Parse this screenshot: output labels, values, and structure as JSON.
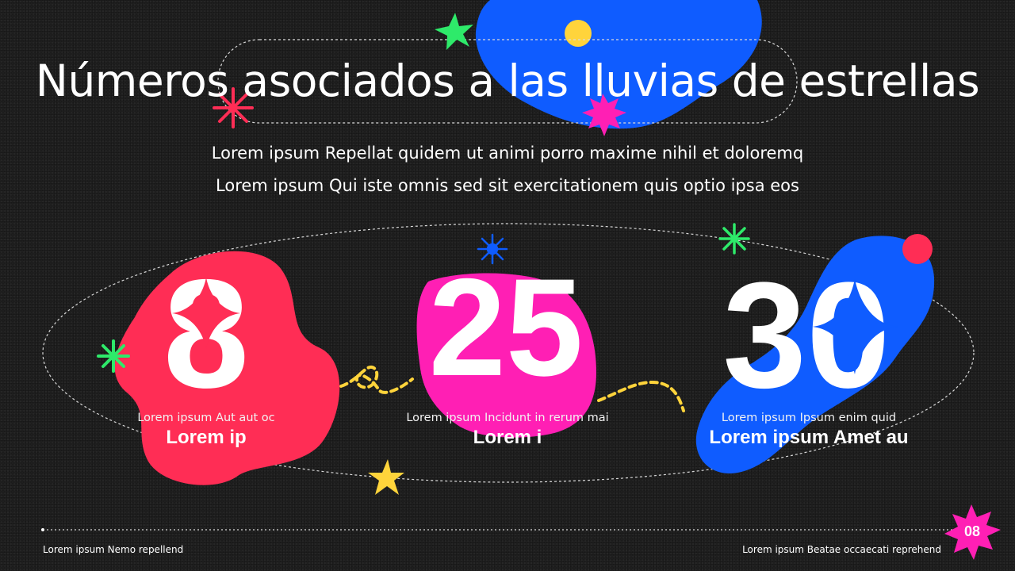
{
  "title": "Números asociados a las lluvias de estrellas",
  "subtitle": [
    "Lorem ipsum Repellat quidem ut animi porro maxime nihil et doloremq",
    "Lorem ipsum Qui iste omnis sed sit exercitationem quis optio ipsa eos"
  ],
  "stats": [
    {
      "value": "8",
      "caption": "Lorem ipsum Aut aut oc",
      "label": "Lorem ip",
      "color": "#ff2d55"
    },
    {
      "value": "25",
      "caption": "Lorem ipsum Incidunt in rerum mai",
      "label": "Lorem i",
      "color": "#ff1fb4"
    },
    {
      "value": "30",
      "caption": "Lorem ipsum Ipsum enim quid",
      "label": "Lorem ipsum Amet au",
      "color": "#0f5cff"
    }
  ],
  "footer": {
    "left": "Lorem ipsum Nemo repellend",
    "right": "Lorem ipsum Beatae occaecati reprehend",
    "page": "08"
  },
  "colors": {
    "background": "#1f1f1f",
    "red": "#ff2d55",
    "pink": "#ff1fb4",
    "blue": "#0f5cff",
    "yellow": "#ffd43b",
    "green": "#2eea6a"
  }
}
